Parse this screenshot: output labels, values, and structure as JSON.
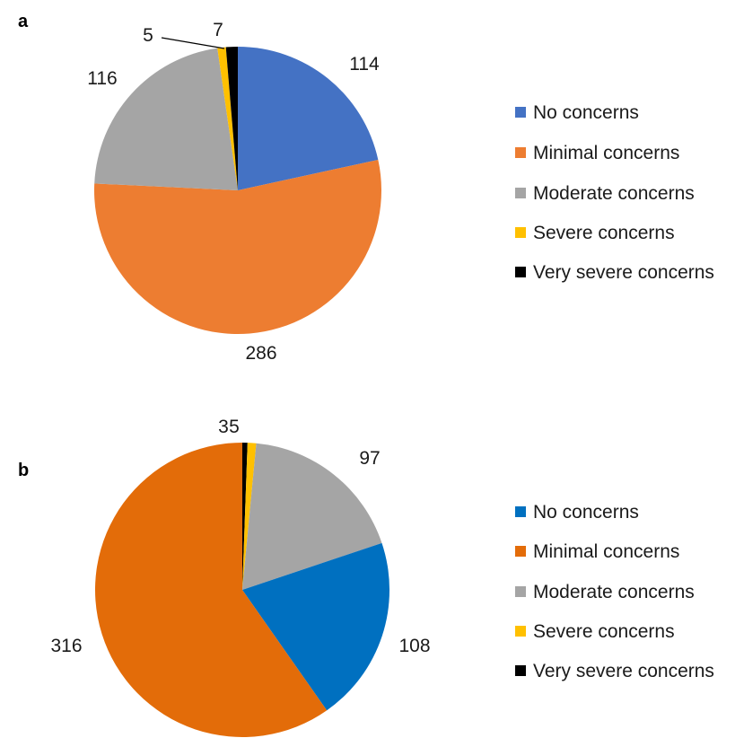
{
  "chart_data": [
    {
      "type": "pie",
      "panel": "a",
      "start": "clockwise from top",
      "categories": [
        "No concerns",
        "Minimal concerns",
        "Moderate concerns",
        "Severe concerns",
        "Very severe concerns"
      ],
      "values": [
        114,
        286,
        116,
        5,
        7
      ],
      "colors": [
        "#4472C4",
        "#ED7D31",
        "#A5A5A5",
        "#FFC000",
        "#000000"
      ],
      "legend": {
        "entries": [
          "No concerns",
          "Minimal concerns",
          "Moderate concerns",
          "Severe concerns",
          "Very severe concerns"
        ],
        "placement": "right"
      }
    },
    {
      "type": "pie",
      "panel": "b",
      "start": "clockwise from top",
      "categories": [
        "Very severe concerns",
        "Severe concerns",
        "Moderate concerns",
        "No concerns",
        "Minimal concerns"
      ],
      "values": [
        3,
        5,
        97,
        108,
        316
      ],
      "colors": [
        "#000000",
        "#FFC000",
        "#A5A5A5",
        "#0070C0",
        "#E36C09"
      ],
      "legend": {
        "entries": [
          "No concerns",
          "Minimal concerns",
          "Moderate concerns",
          "Severe concerns",
          "Very severe concerns"
        ],
        "colors": [
          "#0070C0",
          "#E36C09",
          "#A5A5A5",
          "#FFC000",
          "#000000"
        ],
        "placement": "right"
      }
    }
  ]
}
